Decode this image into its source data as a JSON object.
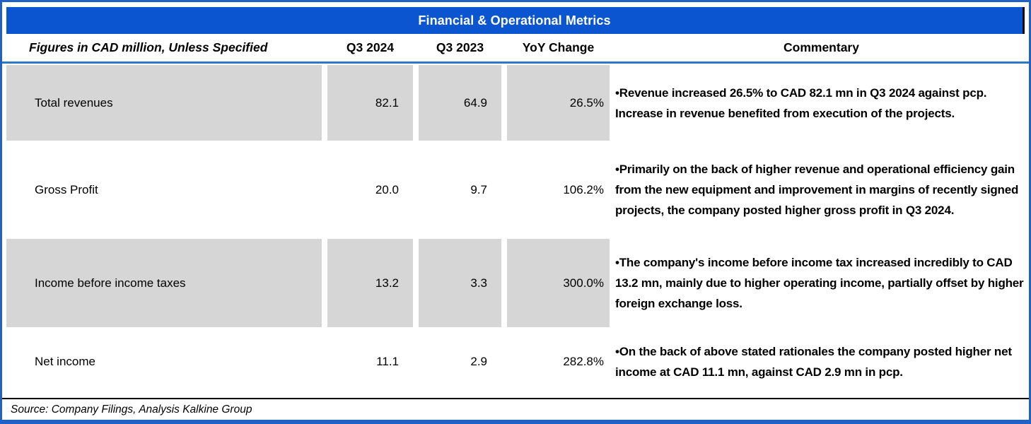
{
  "title": "Financial & Operational Metrics",
  "header": {
    "metric": "Figures in CAD million, Unless Specified",
    "q3_2024": "Q3 2024",
    "q3_2023": "Q3 2023",
    "yoy": "YoY Change",
    "commentary": "Commentary"
  },
  "rows": [
    {
      "metric": "Total revenues",
      "q3_2024": "82.1",
      "q3_2023": "64.9",
      "yoy": "26.5%",
      "commentary": "•Revenue increased 26.5% to CAD 82.1 mn in Q3 2024 against pcp. Increase in revenue benefited from execution of the projects."
    },
    {
      "metric": "Gross Profit",
      "q3_2024": "20.0",
      "q3_2023": "9.7",
      "yoy": "106.2%",
      "commentary": "•Primarily on the back of higher revenue and operational efficiency gain from the new equipment and improvement in margins of recently signed projects, the company posted higher gross profit in Q3 2024."
    },
    {
      "metric": "Income before income taxes",
      "q3_2024": "13.2",
      "q3_2023": "3.3",
      "yoy": "300.0%",
      "commentary": "•The company's income before income tax increased incredibly to CAD 13.2 mn, mainly due to higher operating income, partially offset by higher foreign exchange loss."
    },
    {
      "metric": "Net income",
      "q3_2024": "11.1",
      "q3_2023": "2.9",
      "yoy": "282.8%",
      "commentary": "•On the back of above stated rationales the company posted higher net income at CAD 11.1 mn, against CAD 2.9 mn in pcp."
    }
  ],
  "source": "Source: Company Filings, Analysis Kalkine Group",
  "colors": {
    "title_bar": "#0B55D0",
    "outer_border": "#2061C6",
    "header_underline": "#2E79C7",
    "row_shade": "#D6D6D6"
  },
  "chart_data": {
    "type": "table",
    "title": "Financial & Operational Metrics",
    "unit_note": "Figures in CAD million, Unless Specified",
    "columns": [
      "Q3 2024",
      "Q3 2023",
      "YoY Change"
    ],
    "metrics": [
      "Total revenues",
      "Gross Profit",
      "Income before income taxes",
      "Net income"
    ],
    "q3_2024": [
      82.1,
      20.0,
      13.2,
      11.1
    ],
    "q3_2023": [
      64.9,
      9.7,
      3.3,
      2.9
    ],
    "yoy_change_pct": [
      26.5,
      106.2,
      300.0,
      282.8
    ]
  }
}
